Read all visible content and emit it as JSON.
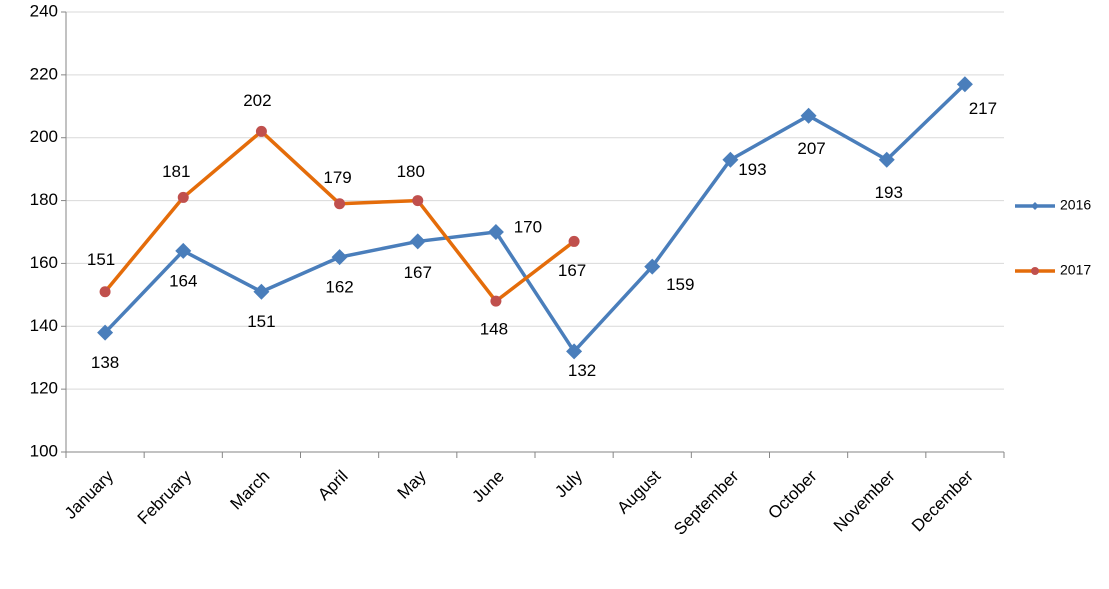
{
  "chart_data": {
    "type": "line",
    "categories": [
      "January",
      "February",
      "March",
      "April",
      "May",
      "June",
      "July",
      "August",
      "September",
      "October",
      "November",
      "December"
    ],
    "series": [
      {
        "name": "2016",
        "color": "#4a7ebb",
        "marker": "diamond",
        "values": [
          138,
          164,
          151,
          162,
          167,
          170,
          132,
          159,
          193,
          207,
          193,
          217
        ]
      },
      {
        "name": "2017",
        "color": "#e46c0a",
        "marker": "circle",
        "values": [
          151,
          181,
          202,
          179,
          180,
          148,
          167,
          null,
          null,
          null,
          null,
          null
        ]
      }
    ],
    "ylim": [
      100,
      240
    ],
    "yticks": [
      100,
      120,
      140,
      160,
      180,
      200,
      220,
      240
    ],
    "grid": true,
    "legend": "right"
  }
}
